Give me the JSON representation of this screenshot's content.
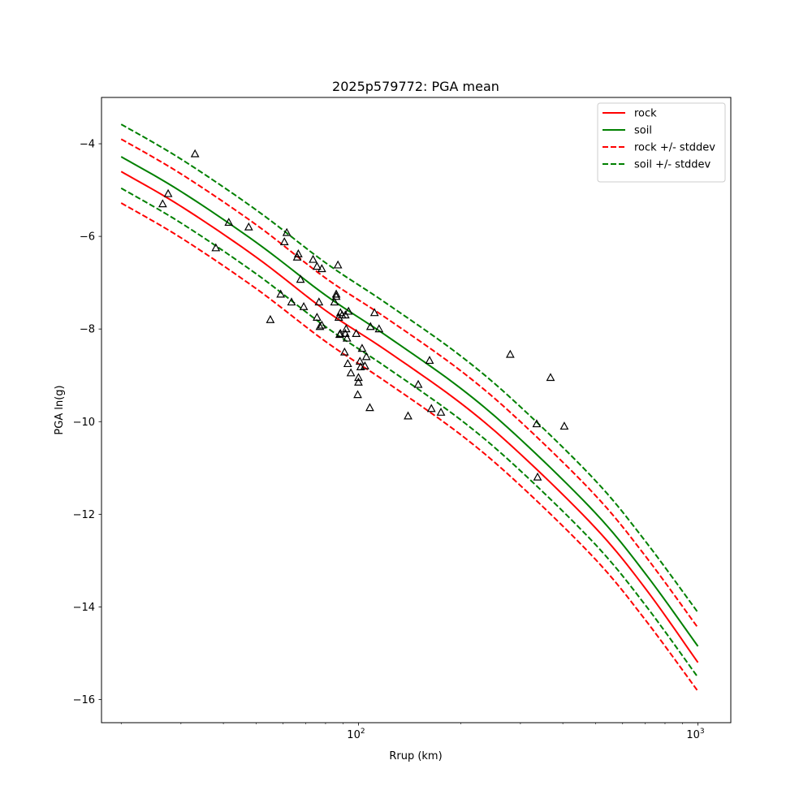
{
  "chart_data": {
    "type": "line",
    "title": "2025p579772: PGA mean",
    "xlabel": "Rrup (km)",
    "ylabel": "PGA ln(g)",
    "xscale": "log",
    "xlim": [
      17.5,
      1250
    ],
    "ylim": [
      -16.5,
      -3.0
    ],
    "x_ticks": [
      {
        "value": 100,
        "base": "10",
        "exp": "2"
      },
      {
        "value": 1000,
        "base": "10",
        "exp": "3"
      }
    ],
    "y_ticks": [
      {
        "value": -4,
        "label": "−4"
      },
      {
        "value": -6,
        "label": "−6"
      },
      {
        "value": -8,
        "label": "−8"
      },
      {
        "value": -10,
        "label": "−10"
      },
      {
        "value": -12,
        "label": "−12"
      },
      {
        "value": -14,
        "label": "−14"
      },
      {
        "value": -16,
        "label": "−16"
      }
    ],
    "grid": false,
    "legend_position": "top-right",
    "series": [
      {
        "name": "rock",
        "color": "#ff0000",
        "style": "solid",
        "x": [
          20,
          30,
          50,
          80,
          120,
          200,
          300,
          500,
          700,
          1000
        ],
        "y": [
          -4.6,
          -5.35,
          -6.45,
          -7.6,
          -8.45,
          -9.6,
          -10.7,
          -12.3,
          -13.6,
          -15.2
        ]
      },
      {
        "name": "soil",
        "color": "#008000",
        "style": "solid",
        "x": [
          20,
          30,
          50,
          80,
          120,
          200,
          300,
          500,
          700,
          1000
        ],
        "y": [
          -4.28,
          -5.03,
          -6.13,
          -7.27,
          -8.13,
          -9.28,
          -10.38,
          -11.98,
          -13.28,
          -14.85
        ]
      },
      {
        "name": "rock +/- stddev",
        "color": "#ff0000",
        "style": "dashed",
        "x": [
          20,
          30,
          50,
          80,
          120,
          200,
          300,
          500,
          700,
          1000
        ],
        "y": [
          -3.9,
          -4.65,
          -5.75,
          -6.9,
          -7.75,
          -8.9,
          -10.0,
          -11.6,
          -12.9,
          -14.45
        ]
      },
      {
        "name": "rock +/- stddev",
        "color": "#ff0000",
        "style": "dashed",
        "legend": false,
        "x": [
          20,
          30,
          50,
          80,
          120,
          200,
          300,
          500,
          700,
          1000
        ],
        "y": [
          -5.28,
          -6.03,
          -7.13,
          -8.27,
          -9.13,
          -10.28,
          -11.38,
          -12.98,
          -14.28,
          -15.82
        ]
      },
      {
        "name": "soil +/- stddev",
        "color": "#008000",
        "style": "dashed",
        "x": [
          20,
          30,
          50,
          80,
          120,
          200,
          300,
          500,
          700,
          1000
        ],
        "y": [
          -3.58,
          -4.33,
          -5.43,
          -6.57,
          -7.43,
          -8.58,
          -9.68,
          -11.28,
          -12.58,
          -14.12
        ]
      },
      {
        "name": "soil +/- stddev",
        "color": "#008000",
        "style": "dashed",
        "legend": false,
        "x": [
          20,
          30,
          50,
          80,
          120,
          200,
          300,
          500,
          700,
          1000
        ],
        "y": [
          -4.96,
          -5.71,
          -6.81,
          -7.95,
          -8.81,
          -9.96,
          -11.06,
          -12.66,
          -13.96,
          -15.52
        ]
      }
    ],
    "observations": {
      "marker": "triangle",
      "color": "#000000",
      "points": [
        [
          33,
          -4.22
        ],
        [
          26.5,
          -5.3
        ],
        [
          27.5,
          -5.08
        ],
        [
          38,
          -6.25
        ],
        [
          41.5,
          -5.7
        ],
        [
          47.5,
          -5.8
        ],
        [
          55,
          -7.8
        ],
        [
          59,
          -7.25
        ],
        [
          60.5,
          -6.12
        ],
        [
          61.5,
          -5.92
        ],
        [
          63.5,
          -7.42
        ],
        [
          66,
          -6.45
        ],
        [
          66.5,
          -6.38
        ],
        [
          67.5,
          -6.93
        ],
        [
          69,
          -7.52
        ],
        [
          73.5,
          -6.5
        ],
        [
          75.5,
          -6.65
        ],
        [
          75.5,
          -7.75
        ],
        [
          76.5,
          -7.42
        ],
        [
          77,
          -7.95
        ],
        [
          78,
          -6.7
        ],
        [
          78,
          -7.92
        ],
        [
          87,
          -6.62
        ],
        [
          85,
          -7.42
        ],
        [
          86,
          -7.25
        ],
        [
          86,
          -7.3
        ],
        [
          87.5,
          -7.75
        ],
        [
          88,
          -8.12
        ],
        [
          88.5,
          -8.1
        ],
        [
          88.5,
          -7.65
        ],
        [
          89.5,
          -7.7
        ],
        [
          91,
          -8.5
        ],
        [
          91.5,
          -8.1
        ],
        [
          91.5,
          -7.7
        ],
        [
          92,
          -8.0
        ],
        [
          92.5,
          -8.2
        ],
        [
          93,
          -8.75
        ],
        [
          93.5,
          -7.62
        ],
        [
          95,
          -8.95
        ],
        [
          98.5,
          -8.1
        ],
        [
          99.5,
          -9.42
        ],
        [
          100,
          -9.05
        ],
        [
          100,
          -9.15
        ],
        [
          101,
          -8.7
        ],
        [
          101.5,
          -8.82
        ],
        [
          102.5,
          -8.42
        ],
        [
          104.5,
          -8.8
        ],
        [
          105.5,
          -8.6
        ],
        [
          108,
          -9.7
        ],
        [
          108.5,
          -7.95
        ],
        [
          111.5,
          -7.65
        ],
        [
          115,
          -8.0
        ],
        [
          140,
          -9.88
        ],
        [
          150,
          -9.2
        ],
        [
          162,
          -8.68
        ],
        [
          164,
          -9.72
        ],
        [
          175,
          -9.8
        ],
        [
          280,
          -8.55
        ],
        [
          335,
          -10.05
        ],
        [
          337,
          -11.2
        ],
        [
          368,
          -9.05
        ],
        [
          404,
          -10.1
        ]
      ]
    }
  }
}
